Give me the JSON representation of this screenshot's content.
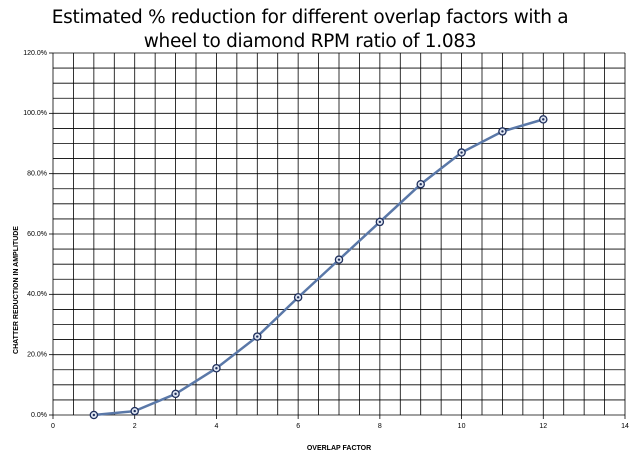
{
  "chart_data": {
    "type": "line",
    "title": "Estimated % reduction for different overlap factors with a wheel to diamond RPM ratio of 1.083",
    "x_label": "OVERLAP FACTOR",
    "y_label": "CHATTER REDUCTION IN AMPLITUDE",
    "x": [
      1,
      2,
      3,
      4,
      5,
      6,
      7,
      8,
      9,
      10,
      11,
      12
    ],
    "values": [
      0,
      1.3,
      7,
      15.5,
      26,
      39,
      51.5,
      64,
      76.5,
      87,
      94,
      98
    ],
    "color": "#5a78a8",
    "marker_color": "#1f2f5c",
    "xlim": [
      0,
      14
    ],
    "xticks": [
      0,
      2,
      4,
      6,
      8,
      10,
      12,
      14
    ],
    "minor_xticks": [
      0.5,
      1,
      1.5,
      2.5,
      3,
      3.5,
      4.5,
      5,
      5.5,
      6.5,
      7,
      7.5,
      8.5,
      9,
      9.5,
      10.5,
      11,
      11.5,
      12.5,
      13,
      13.5
    ],
    "ylim": [
      0,
      120
    ],
    "yticks": [
      {
        "value": 0,
        "label": "0.0%"
      },
      {
        "value": 20,
        "label": "20.0%"
      },
      {
        "value": 40,
        "label": "40.0%"
      },
      {
        "value": 60,
        "label": "60.0%"
      },
      {
        "value": 80,
        "label": "80.0%"
      },
      {
        "value": 100,
        "label": "100.0%"
      },
      {
        "value": 120,
        "label": "120.0%"
      }
    ],
    "minor_yticks": [
      5,
      10,
      15,
      25,
      30,
      35,
      45,
      50,
      55,
      65,
      70,
      75,
      85,
      90,
      95,
      105,
      110,
      115
    ],
    "grid": true
  }
}
